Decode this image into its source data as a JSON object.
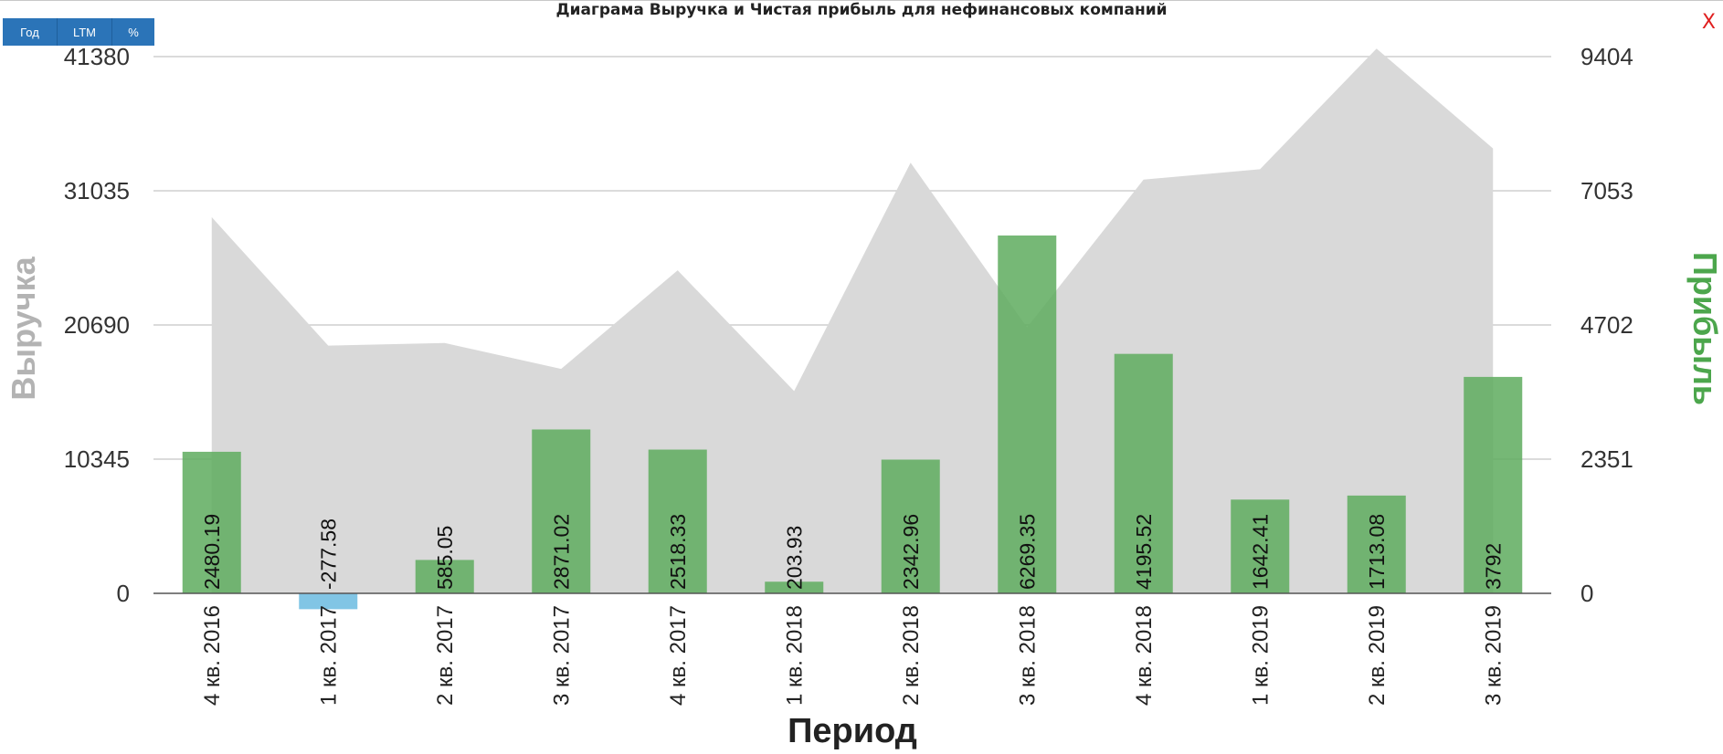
{
  "toolbar": {
    "buttons": [
      "Год",
      "LTM",
      "%"
    ],
    "close_label": "X"
  },
  "colors": {
    "revenue_area": "#d9d9d9",
    "profit_positive": "#5eab5e",
    "profit_negative": "#6bbbe0",
    "left_axis_title": "#b3b3b3",
    "right_axis_title": "#4ca64c",
    "button_bg": "#2b74b8",
    "close": "#e02020"
  },
  "chart_data": {
    "type": "bar",
    "title": "Диаграма Выручка и Чистая прибыль для нефинансовых компаний",
    "xlabel": "Период",
    "ylabel_left": "Выручка",
    "ylabel_right": "Прибыль",
    "categories": [
      "4 кв. 2016",
      "1 кв. 2017",
      "2 кв. 2017",
      "3 кв. 2017",
      "4 кв. 2017",
      "1 кв. 2018",
      "2 кв. 2018",
      "3 кв. 2018",
      "4 кв. 2018",
      "1 кв. 2019",
      "2 кв. 2019",
      "3 кв. 2019"
    ],
    "left_ticks": [
      0,
      10345,
      20690,
      31035,
      41380
    ],
    "right_ticks": [
      0,
      2351,
      4702,
      7053,
      9404
    ],
    "ylim_left": [
      0,
      41380
    ],
    "ylim_right": [
      0,
      9404
    ],
    "grid": true,
    "series": [
      {
        "name": "Выручка",
        "type": "area",
        "axis": "left",
        "values": [
          29000,
          19100,
          19300,
          17300,
          24900,
          15600,
          33200,
          20500,
          31900,
          32700,
          42000,
          34300
        ]
      },
      {
        "name": "Прибыль",
        "type": "bar",
        "axis": "right",
        "values": [
          2480.19,
          -277.58,
          585.05,
          2871.02,
          2518.33,
          203.93,
          2342.96,
          6269.35,
          4195.52,
          1642.41,
          1713.08,
          3792
        ]
      }
    ],
    "data_labels": [
      "2480.19",
      "-277.58",
      "585.05",
      "2871.02",
      "2518.33",
      "203.93",
      "2342.96",
      "6269.35",
      "4195.52",
      "1642.41",
      "1713.08",
      "3792"
    ]
  }
}
